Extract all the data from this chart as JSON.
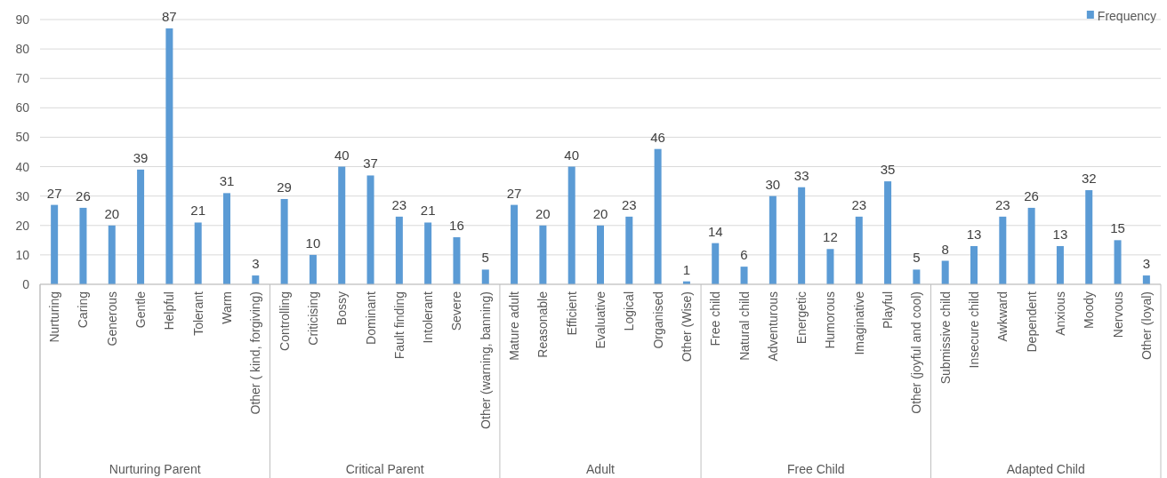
{
  "chart_data": {
    "type": "bar",
    "categories": [
      "Nurturing",
      "Caring",
      "Generous",
      "Gentle",
      "Helpful",
      "Tolerant",
      "Warm",
      "Other ( kind, forgiving)",
      "Controlling",
      "Criticising",
      "Bossy",
      "Dominant",
      "Fault finding",
      "Intolerant",
      "Severe",
      "Other (warning, banning)",
      "Mature adult",
      "Reasonable",
      "Efficient",
      "Evaluative",
      "Logical",
      "Organised",
      "Other (Wise)",
      "Free child",
      "Natural child",
      "Adventurous",
      "Energetic",
      "Humorous",
      "Imaginative",
      "Playful",
      "Other (joyful and cool)",
      "Submissive child",
      "Insecure child",
      "Awkward",
      "Dependent",
      "Anxious",
      "Moody",
      "Nervous",
      "Other (loyal)"
    ],
    "series": [
      {
        "name": "Frequency",
        "color": "#5b9bd5",
        "values": [
          27,
          26,
          20,
          39,
          87,
          21,
          31,
          3,
          29,
          10,
          40,
          37,
          23,
          21,
          16,
          5,
          27,
          20,
          40,
          20,
          23,
          46,
          1,
          14,
          6,
          30,
          33,
          12,
          23,
          35,
          5,
          8,
          13,
          23,
          26,
          13,
          32,
          15,
          3
        ]
      }
    ],
    "ylim": [
      0,
      90
    ],
    "yticks": [
      0,
      10,
      20,
      30,
      40,
      50,
      60,
      70,
      80,
      90
    ],
    "grid": "y",
    "legend": "top right",
    "data_labels": true,
    "annotations": [
      "Nurturing Parent",
      "Critical Parent",
      "Adult",
      "Free Child",
      "Adapted Child"
    ]
  }
}
